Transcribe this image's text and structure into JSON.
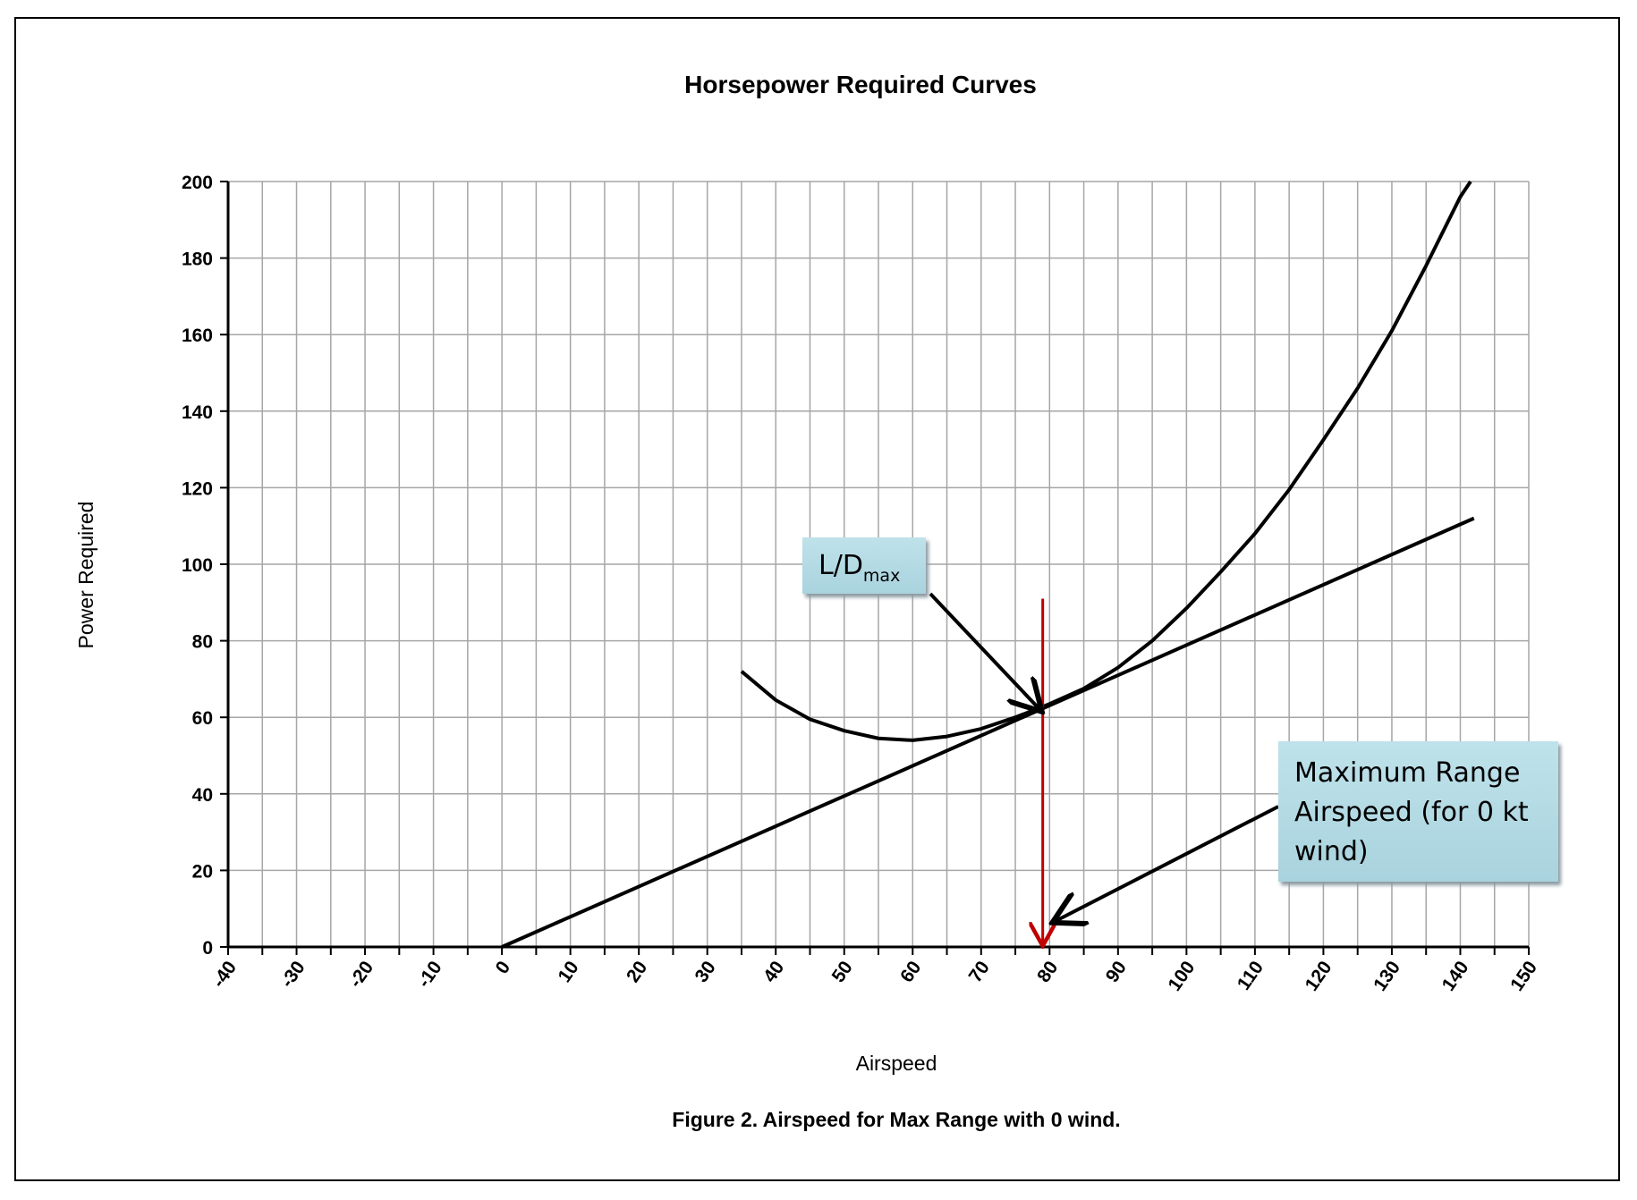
{
  "chart_data": {
    "type": "line",
    "title": "Horsepower Required Curves",
    "xlabel": "Airspeed",
    "ylabel": "Power Required",
    "caption": "Figure 2. Airspeed for Max Range with 0 wind.",
    "xlim": [
      -40,
      150
    ],
    "ylim": [
      0,
      200
    ],
    "xticks": [
      -40,
      -30,
      -20,
      -10,
      0,
      10,
      20,
      30,
      40,
      50,
      60,
      70,
      80,
      90,
      100,
      110,
      120,
      130,
      140,
      150
    ],
    "yticks": [
      0,
      20,
      40,
      60,
      80,
      100,
      120,
      140,
      160,
      180,
      200
    ],
    "grid": true,
    "series": [
      {
        "x": [
          35,
          40,
          45,
          50,
          55,
          60,
          65,
          70,
          75,
          80,
          85,
          90,
          95,
          100,
          105,
          110,
          115,
          120,
          125,
          130,
          135,
          140,
          141.5
        ],
        "y": [
          72,
          64.5,
          59.5,
          56.5,
          54.5,
          54,
          55,
          57,
          60,
          63.5,
          67.5,
          73,
          80,
          88.5,
          98,
          108,
          119.5,
          132.5,
          146,
          161,
          178,
          196,
          200
        ],
        "color": "#000000"
      },
      {
        "x": [
          0,
          142
        ],
        "y": [
          0,
          112
        ],
        "color": "#000000"
      }
    ],
    "marker_line": {
      "x": 79,
      "y_from": 91,
      "y_to": 0,
      "color": "#c00000"
    },
    "annotations": [
      {
        "id": "ld",
        "text": "L/D",
        "subscript": "max",
        "points_to": [
          79,
          62.5
        ]
      },
      {
        "id": "mr",
        "text": "Maximum Range Airspeed (for 0 kt wind)",
        "points_to": [
          80,
          7
        ]
      }
    ],
    "annotation_fill": "#b5dae4"
  }
}
